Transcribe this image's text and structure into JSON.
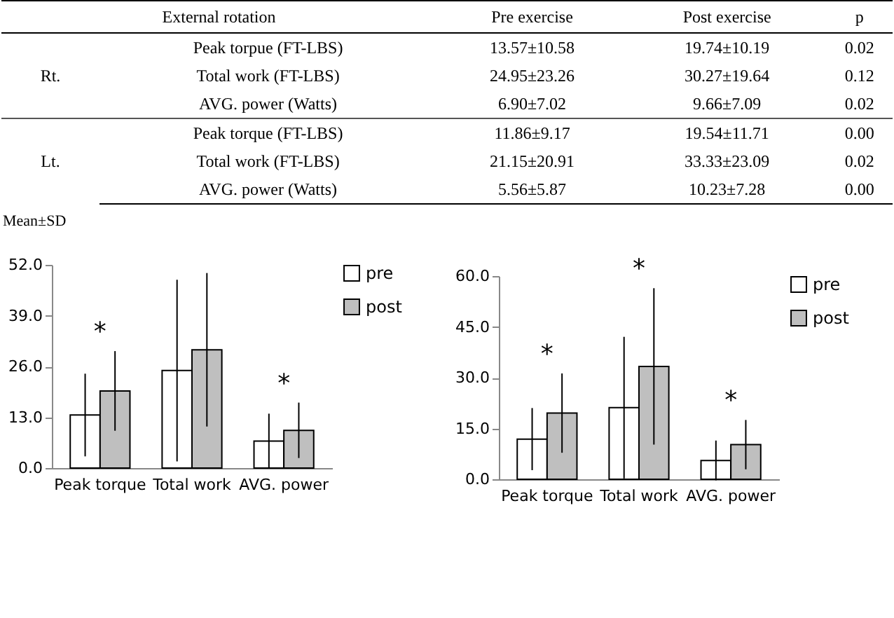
{
  "chart_data": [
    {
      "type": "other",
      "annotations": [
        "External rotation",
        "Pre exercise",
        "Post exercise",
        "p",
        "Rt.",
        "Peak torpue (FT-LBS)",
        "13.57±10.58",
        "19.74±10.19",
        "0.02",
        "Total work (FT-LBS)",
        "24.95±23.26",
        "30.27±19.64",
        "0.12",
        "AVG. power (Watts)",
        "6.90±7.02",
        "9.66±7.09",
        "0.02",
        "Lt.",
        "Peak torque (FT-LBS)",
        "11.86±9.17",
        "19.54±11.71",
        "0.00",
        "Total work (FT-LBS)",
        "21.15±20.91",
        "33.33±23.09",
        "0.02",
        "AVG. power (Watts)",
        "5.56±5.87",
        "10.23±7.28",
        "0.00",
        "Mean±SD"
      ]
    },
    {
      "type": "bar",
      "categories": [
        "Peak torque",
        "Total work",
        "AVG. power"
      ],
      "series": [
        {
          "name": "pre",
          "color": "#ffffff",
          "values": [
            13.57,
            24.95,
            6.9
          ],
          "errors": [
            10.58,
            23.26,
            7.02
          ]
        },
        {
          "name": "post",
          "color": "#bfbfbf",
          "values": [
            19.74,
            30.27,
            9.66
          ],
          "errors": [
            10.19,
            19.64,
            7.09
          ]
        }
      ],
      "ylim": [
        0,
        52
      ],
      "yticks": [
        {
          "value": 0,
          "label": "0.0"
        },
        {
          "value": 13,
          "label": "13.0"
        },
        {
          "value": 26,
          "label": "26.0"
        },
        {
          "value": 39,
          "label": "39.0"
        },
        {
          "value": 52,
          "label": "52.0"
        }
      ],
      "annotations": [
        "*",
        "*"
      ],
      "legend": "right"
    },
    {
      "type": "bar",
      "categories": [
        "Peak torque",
        "Total work",
        "AVG. power"
      ],
      "series": [
        {
          "name": "pre",
          "color": "#ffffff",
          "values": [
            11.86,
            21.15,
            5.56
          ],
          "errors": [
            9.17,
            20.91,
            5.87
          ]
        },
        {
          "name": "post",
          "color": "#bfbfbf",
          "values": [
            19.54,
            33.33,
            10.23
          ],
          "errors": [
            11.71,
            23.09,
            7.28
          ]
        }
      ],
      "ylim": [
        0,
        60
      ],
      "yticks": [
        {
          "value": 0,
          "label": "0.0"
        },
        {
          "value": 15,
          "label": "15.0"
        },
        {
          "value": 30,
          "label": "30.0"
        },
        {
          "value": 45,
          "label": "45.0"
        },
        {
          "value": 60,
          "label": "60.0"
        }
      ],
      "annotations": [
        "*",
        "*",
        "*"
      ],
      "legend": "right"
    }
  ]
}
